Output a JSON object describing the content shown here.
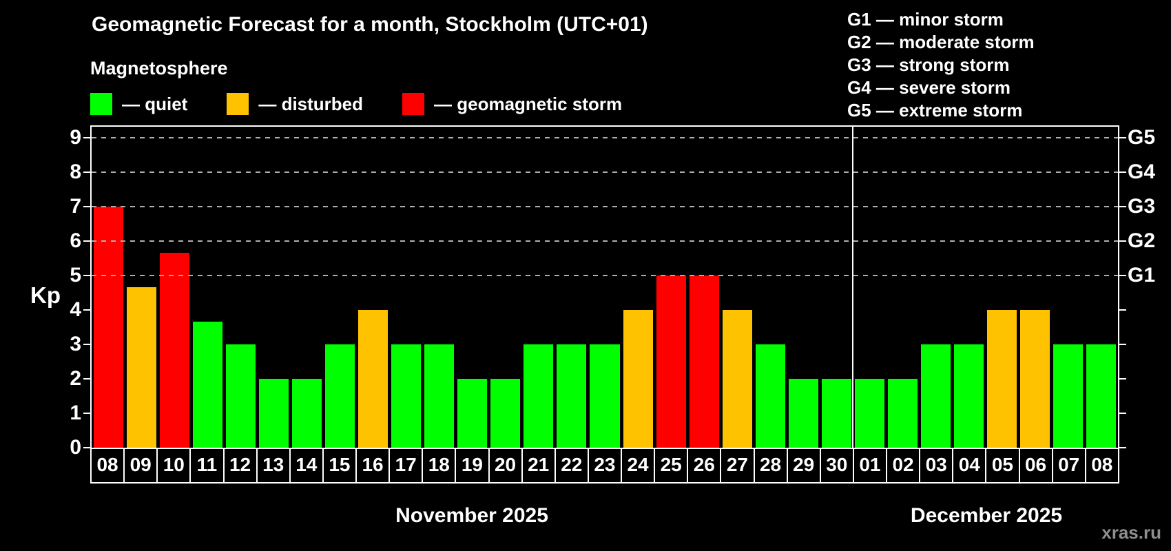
{
  "title": "Geomagnetic Forecast for a month, Stockholm (UTC+01)",
  "subtitle": "Magnetosphere",
  "watermark": "xras.ru",
  "colors": {
    "quiet": "#00ff00",
    "disturbed": "#ffc200",
    "storm": "#ff0000",
    "background": "#000000",
    "axis": "#ffffff",
    "grid": "#b0b0b0",
    "watermark_gray": "#8f8f8f"
  },
  "legend": [
    {
      "swatch": "quiet",
      "label": "— quiet"
    },
    {
      "swatch": "disturbed",
      "label": "— disturbed"
    },
    {
      "swatch": "storm",
      "label": "— geomagnetic storm"
    }
  ],
  "g_scale_legend": [
    {
      "label": "G1 — minor storm"
    },
    {
      "label": "G2 — moderate storm"
    },
    {
      "label": "G3 — strong storm"
    },
    {
      "label": "G4 — severe storm"
    },
    {
      "label": "G5 — extreme storm"
    }
  ],
  "y_axis": {
    "label": "Kp",
    "ticks": [
      0,
      1,
      2,
      3,
      4,
      5,
      6,
      7,
      8,
      9
    ]
  },
  "right_axis": {
    "labels": [
      {
        "text": "G1",
        "kp": 5
      },
      {
        "text": "G2",
        "kp": 6
      },
      {
        "text": "G3",
        "kp": 7
      },
      {
        "text": "G4",
        "kp": 8
      },
      {
        "text": "G5",
        "kp": 9
      }
    ]
  },
  "months": [
    {
      "label": "November 2025",
      "day_count": 23
    },
    {
      "label": "December 2025",
      "day_count": 8
    }
  ],
  "chart_data": {
    "type": "bar",
    "title": "Geomagnetic Forecast for a month, Stockholm (UTC+01)",
    "xlabel": "",
    "ylabel": "Kp",
    "ylim": [
      0,
      9.6
    ],
    "grid_levels": [
      5,
      6,
      7,
      8,
      9
    ],
    "legend_position": "top",
    "categories": [
      "08",
      "09",
      "10",
      "11",
      "12",
      "13",
      "14",
      "15",
      "16",
      "17",
      "18",
      "19",
      "20",
      "21",
      "22",
      "23",
      "24",
      "25",
      "26",
      "27",
      "28",
      "29",
      "30",
      "01",
      "02",
      "03",
      "04",
      "05",
      "06",
      "07",
      "08"
    ],
    "values": [
      7.0,
      4.67,
      5.67,
      3.67,
      3,
      2,
      2,
      3,
      4,
      3,
      3,
      2,
      2,
      3,
      3,
      3,
      4,
      5,
      5,
      4,
      3,
      2,
      2,
      2,
      2,
      3,
      3,
      4,
      4,
      3,
      3
    ],
    "statuses": [
      "storm",
      "disturbed",
      "storm",
      "quiet",
      "quiet",
      "quiet",
      "quiet",
      "quiet",
      "disturbed",
      "quiet",
      "quiet",
      "quiet",
      "quiet",
      "quiet",
      "quiet",
      "quiet",
      "disturbed",
      "storm",
      "storm",
      "disturbed",
      "quiet",
      "quiet",
      "quiet",
      "quiet",
      "quiet",
      "quiet",
      "quiet",
      "disturbed",
      "disturbed",
      "quiet",
      "quiet"
    ]
  }
}
